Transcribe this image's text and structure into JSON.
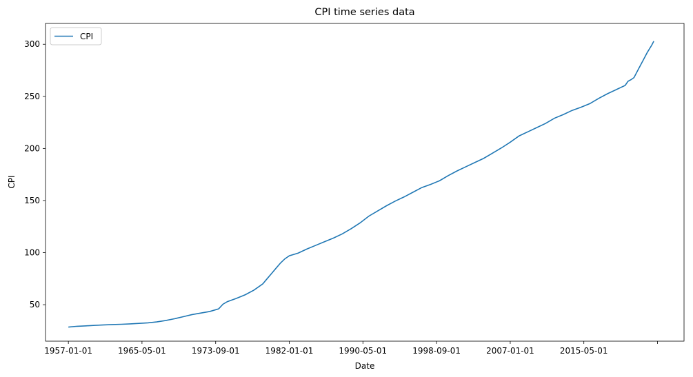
{
  "chart_data": {
    "type": "line",
    "title": "CPI time series data",
    "xlabel": "Date",
    "ylabel": "CPI",
    "xlim": [
      "1954-06-01",
      "2026-09-01"
    ],
    "ylim": [
      15,
      320
    ],
    "x_ticks": [
      {
        "date": "1957-01-01",
        "label": "1957-01-01"
      },
      {
        "date": "1965-05-01",
        "label": "1965-05-01"
      },
      {
        "date": "1973-09-01",
        "label": "1973-09-01"
      },
      {
        "date": "1982-01-01",
        "label": "1982-01-01"
      },
      {
        "date": "1990-05-01",
        "label": "1990-05-01"
      },
      {
        "date": "1998-09-01",
        "label": "1998-09-01"
      },
      {
        "date": "2007-01-01",
        "label": "2007-01-01"
      },
      {
        "date": "2015-05-01",
        "label": "2015-05-01"
      },
      {
        "date": "2023-09-01",
        "label": ""
      }
    ],
    "y_ticks": [
      50,
      100,
      150,
      200,
      250,
      300
    ],
    "legend": {
      "placement": "top-left"
    },
    "grid": false,
    "series": [
      {
        "name": "CPI",
        "color": "#1f77b4",
        "points": [
          [
            "1957-01-01",
            28.5
          ],
          [
            "1958-01-01",
            29.3
          ],
          [
            "1959-01-01",
            29.7
          ],
          [
            "1960-01-01",
            30.2
          ],
          [
            "1961-01-01",
            30.6
          ],
          [
            "1962-01-01",
            30.9
          ],
          [
            "1963-01-01",
            31.2
          ],
          [
            "1964-01-01",
            31.6
          ],
          [
            "1965-01-01",
            32.1
          ],
          [
            "1966-01-01",
            32.6
          ],
          [
            "1967-01-01",
            33.5
          ],
          [
            "1968-01-01",
            34.8
          ],
          [
            "1969-01-01",
            36.5
          ],
          [
            "1970-01-01",
            38.5
          ],
          [
            "1971-01-01",
            40.5
          ],
          [
            "1972-01-01",
            42.0
          ],
          [
            "1973-01-01",
            43.5
          ],
          [
            "1974-01-01",
            46.0
          ],
          [
            "1974-07-01",
            50.5
          ],
          [
            "1975-01-01",
            53.0
          ],
          [
            "1976-01-01",
            56.0
          ],
          [
            "1977-01-01",
            59.5
          ],
          [
            "1978-01-01",
            64.0
          ],
          [
            "1979-01-01",
            70.0
          ],
          [
            "1979-07-01",
            75.0
          ],
          [
            "1980-01-01",
            80.0
          ],
          [
            "1980-07-01",
            85.0
          ],
          [
            "1981-01-01",
            90.0
          ],
          [
            "1981-07-01",
            94.0
          ],
          [
            "1982-01-01",
            97.0
          ],
          [
            "1983-01-01",
            99.5
          ],
          [
            "1984-01-01",
            103.5
          ],
          [
            "1985-01-01",
            107.0
          ],
          [
            "1986-01-01",
            110.5
          ],
          [
            "1987-01-01",
            114.0
          ],
          [
            "1988-01-01",
            118.0
          ],
          [
            "1989-01-01",
            123.0
          ],
          [
            "1990-01-01",
            128.5
          ],
          [
            "1991-01-01",
            135.0
          ],
          [
            "1992-01-01",
            140.0
          ],
          [
            "1993-01-01",
            145.0
          ],
          [
            "1994-01-01",
            149.5
          ],
          [
            "1995-01-01",
            153.5
          ],
          [
            "1996-01-01",
            158.0
          ],
          [
            "1997-01-01",
            162.5
          ],
          [
            "1998-01-01",
            165.5
          ],
          [
            "1999-01-01",
            169.0
          ],
          [
            "2000-01-01",
            174.0
          ],
          [
            "2001-01-01",
            178.5
          ],
          [
            "2002-01-01",
            182.5
          ],
          [
            "2003-01-01",
            186.5
          ],
          [
            "2004-01-01",
            190.5
          ],
          [
            "2005-01-01",
            195.5
          ],
          [
            "2006-01-01",
            200.5
          ],
          [
            "2007-01-01",
            206.0
          ],
          [
            "2008-01-01",
            212.0
          ],
          [
            "2009-01-01",
            216.0
          ],
          [
            "2010-01-01",
            220.0
          ],
          [
            "2011-01-01",
            224.0
          ],
          [
            "2012-01-01",
            229.0
          ],
          [
            "2013-01-01",
            232.5
          ],
          [
            "2014-01-01",
            236.5
          ],
          [
            "2015-01-01",
            239.5
          ],
          [
            "2016-01-01",
            243.0
          ],
          [
            "2017-01-01",
            248.0
          ],
          [
            "2018-01-01",
            252.5
          ],
          [
            "2019-01-01",
            256.5
          ],
          [
            "2020-01-01",
            260.5
          ],
          [
            "2020-05-01",
            264.5
          ],
          [
            "2020-09-01",
            266.0
          ],
          [
            "2021-01-01",
            268.0
          ],
          [
            "2021-07-01",
            276.0
          ],
          [
            "2022-01-01",
            284.0
          ],
          [
            "2022-07-01",
            292.0
          ],
          [
            "2023-01-01",
            299.0
          ],
          [
            "2023-04-01",
            303.0
          ]
        ]
      }
    ]
  }
}
